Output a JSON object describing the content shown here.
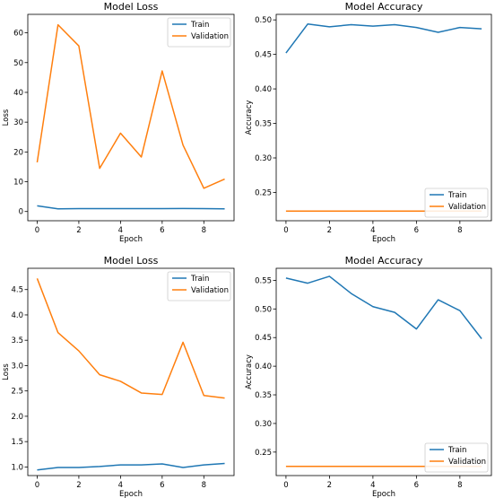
{
  "colors": {
    "train": "#1f77b4",
    "validation": "#ff7f0e"
  },
  "chart_data": [
    {
      "type": "line",
      "title": "Model Loss",
      "xlabel": "Epoch",
      "ylabel": "Loss",
      "x": [
        0,
        1,
        2,
        3,
        4,
        5,
        6,
        7,
        8,
        9
      ],
      "xlim": [
        -0.45,
        9.45
      ],
      "ylim": [
        -3.1,
        66.2
      ],
      "xticks": [
        0,
        2,
        4,
        6,
        8
      ],
      "yticks": [
        0,
        10,
        20,
        30,
        40,
        50,
        60
      ],
      "tick_labels_x": [
        "0",
        "2",
        "4",
        "6",
        "8"
      ],
      "tick_labels_y": [
        "0",
        "10",
        "20",
        "30",
        "40",
        "50",
        "60"
      ],
      "legend": "upper-right",
      "series": [
        {
          "name": "Train",
          "color": "#1f77b4",
          "values": [
            1.9,
            0.9,
            0.95,
            0.95,
            0.95,
            0.95,
            0.95,
            1.0,
            0.95,
            0.9
          ]
        },
        {
          "name": "Validation",
          "color": "#ff7f0e",
          "values": [
            16.5,
            62.7,
            55.6,
            14.5,
            26.3,
            18.3,
            47.2,
            22.3,
            7.8,
            10.9
          ]
        }
      ]
    },
    {
      "type": "line",
      "title": "Model Accuracy",
      "xlabel": "Epoch",
      "ylabel": "Accuracy",
      "x": [
        0,
        1,
        2,
        3,
        4,
        5,
        6,
        7,
        8,
        9
      ],
      "xlim": [
        -0.45,
        9.45
      ],
      "ylim": [
        0.209,
        0.508
      ],
      "xticks": [
        0,
        2,
        4,
        6,
        8
      ],
      "yticks": [
        0.25,
        0.3,
        0.35,
        0.4,
        0.45,
        0.5
      ],
      "tick_labels_x": [
        "0",
        "2",
        "4",
        "6",
        "8"
      ],
      "tick_labels_y": [
        "0.25",
        "0.30",
        "0.35",
        "0.40",
        "0.45",
        "0.50"
      ],
      "legend": "lower-right",
      "series": [
        {
          "name": "Train",
          "color": "#1f77b4",
          "values": [
            0.452,
            0.494,
            0.49,
            0.493,
            0.491,
            0.493,
            0.489,
            0.482,
            0.489,
            0.487
          ]
        },
        {
          "name": "Validation",
          "color": "#ff7f0e",
          "values": [
            0.223,
            0.223,
            0.223,
            0.223,
            0.223,
            0.223,
            0.223,
            0.223,
            0.223,
            0.223
          ]
        }
      ]
    },
    {
      "type": "line",
      "title": "Model Loss",
      "xlabel": "Epoch",
      "ylabel": "Loss",
      "x": [
        0,
        1,
        2,
        3,
        4,
        5,
        6,
        7,
        8,
        9
      ],
      "xlim": [
        -0.45,
        9.45
      ],
      "ylim": [
        0.83,
        4.92
      ],
      "xticks": [
        0,
        2,
        4,
        6,
        8
      ],
      "yticks": [
        1.0,
        1.5,
        2.0,
        2.5,
        3.0,
        3.5,
        4.0,
        4.5
      ],
      "tick_labels_x": [
        "0",
        "2",
        "4",
        "6",
        "8"
      ],
      "tick_labels_y": [
        "1.0",
        "1.5",
        "2.0",
        "2.5",
        "3.0",
        "3.5",
        "4.0",
        "4.5"
      ],
      "legend": "upper-right",
      "series": [
        {
          "name": "Train",
          "color": "#1f77b4",
          "values": [
            0.94,
            0.99,
            0.99,
            1.01,
            1.04,
            1.04,
            1.06,
            0.99,
            1.04,
            1.07
          ]
        },
        {
          "name": "Validation",
          "color": "#ff7f0e",
          "values": [
            4.72,
            3.65,
            3.29,
            2.82,
            2.69,
            2.46,
            2.43,
            3.46,
            2.41,
            2.36
          ]
        }
      ]
    },
    {
      "type": "line",
      "title": "Model Accuracy",
      "xlabel": "Epoch",
      "ylabel": "Accuracy",
      "x": [
        0,
        1,
        2,
        3,
        4,
        5,
        6,
        7,
        8,
        9
      ],
      "xlim": [
        -0.45,
        9.45
      ],
      "ylim": [
        0.209,
        0.571
      ],
      "xticks": [
        0,
        2,
        4,
        6,
        8
      ],
      "yticks": [
        0.25,
        0.3,
        0.35,
        0.4,
        0.45,
        0.5,
        0.55
      ],
      "tick_labels_x": [
        "0",
        "2",
        "4",
        "6",
        "8"
      ],
      "tick_labels_y": [
        "0.25",
        "0.30",
        "0.35",
        "0.40",
        "0.45",
        "0.50",
        "0.55"
      ],
      "legend": "lower-right",
      "series": [
        {
          "name": "Train",
          "color": "#1f77b4",
          "values": [
            0.554,
            0.545,
            0.557,
            0.527,
            0.504,
            0.494,
            0.465,
            0.516,
            0.497,
            0.448
          ]
        },
        {
          "name": "Validation",
          "color": "#ff7f0e",
          "values": [
            0.225,
            0.225,
            0.225,
            0.225,
            0.225,
            0.225,
            0.225,
            0.225,
            0.225,
            0.225
          ]
        }
      ]
    }
  ]
}
